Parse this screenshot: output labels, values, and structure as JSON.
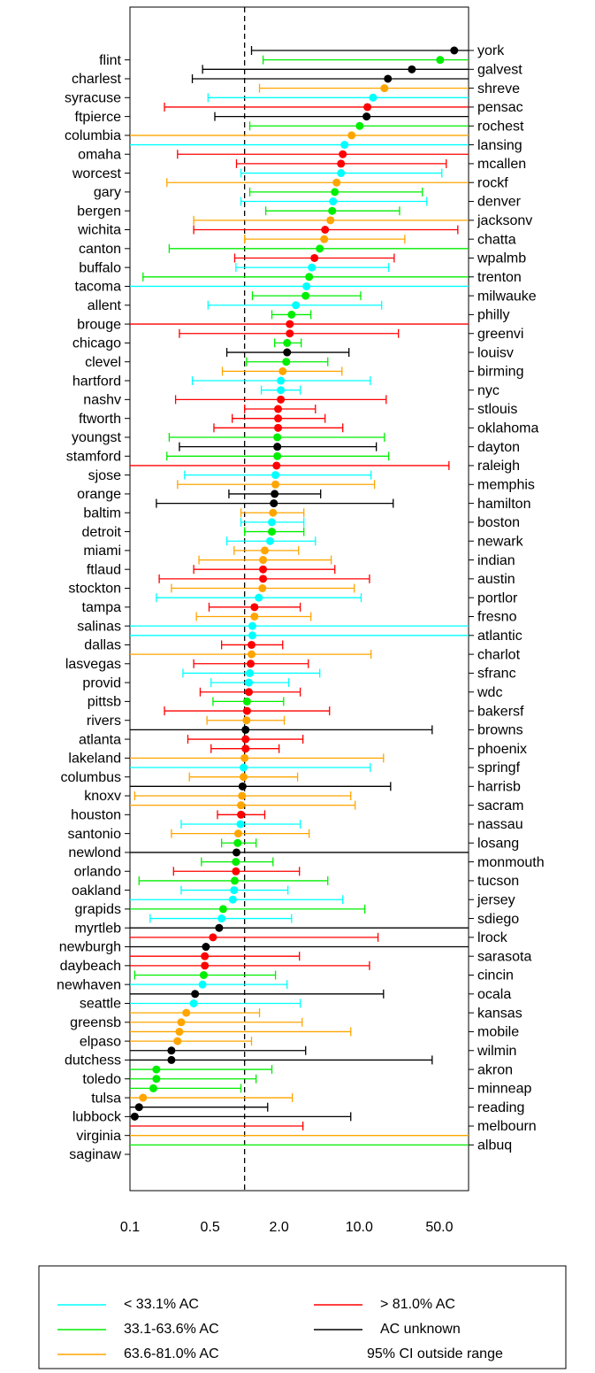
{
  "chart_data": {
    "type": "errorbar",
    "xscale": "log",
    "xlim": [
      0.1,
      90
    ],
    "xticks": [
      0.1,
      0.5,
      {
        "value": 2,
        "label": "2.0"
      },
      {
        "value": 10,
        "label": "10.0"
      },
      {
        "value": 50,
        "label": "50.0"
      }
    ],
    "grid": false,
    "refline": 1,
    "categories": [
      "york",
      "flint",
      "galvest",
      "charlest",
      "shreve",
      "syracuse",
      "pensac",
      "ftpierce",
      "rochest",
      "columbia",
      "lansing",
      "omaha",
      "mcallen",
      "worcest",
      "rockf",
      "gary",
      "denver",
      "bergen",
      "jacksonv",
      "wichita",
      "chatta",
      "canton",
      "wpalmb",
      "buffalo",
      "trenton",
      "tacoma",
      "milwauke",
      "allent",
      "philly",
      "brouge",
      "greenvi",
      "chicago",
      "louisv",
      "clevel",
      "birming",
      "hartford",
      "nyc",
      "nashv",
      "stlouis",
      "ftworth",
      "oklahoma",
      "youngst",
      "dayton",
      "stamford",
      "raleigh",
      "sjose",
      "memphis",
      "orange",
      "hamilton",
      "baltim",
      "boston",
      "detroit",
      "newark",
      "miami",
      "indian",
      "ftlaud",
      "austin",
      "stockton",
      "portlor",
      "tampa",
      "fresno",
      "salinas",
      "atlantic",
      "dallas",
      "charlot",
      "lasvegas",
      "sfranc",
      "provid",
      "wdc",
      "pittsb",
      "bakersf",
      "rivers",
      "browns",
      "atlanta",
      "phoenix",
      "lakeland",
      "springf",
      "columbus",
      "harrisb",
      "knoxv",
      "sacram",
      "houston",
      "nassau",
      "santonio",
      "losang",
      "newlond",
      "monmouth",
      "orlando",
      "tucson",
      "oakland",
      "jersey",
      "grapids",
      "sdiego",
      "myrtleb",
      "lrock",
      "newburgh",
      "sarasota",
      "daybeach",
      "cincin",
      "newhaven",
      "ocala",
      "seattle",
      "kansas",
      "greensb",
      "mobile",
      "elpaso",
      "wilmin",
      "dutchess",
      "akron",
      "toledo",
      "minneap",
      "tulsa",
      "reading",
      "lubbock",
      "melbourn",
      "virginia",
      "albuq",
      "saginaw"
    ],
    "values": [
      67.5,
      50.8,
      28.8,
      17.8,
      16.6,
      13.2,
      11.8,
      11.6,
      10.1,
      8.59,
      7.45,
      7.19,
      6.94,
      6.94,
      6.35,
      6.13,
      5.92,
      5.81,
      5.61,
      5.04,
      4.95,
      4.53,
      4.07,
      3.86,
      3.66,
      3.47,
      3.41,
      2.8,
      2.57,
      2.48,
      2.48,
      2.35,
      2.35,
      2.31,
      2.15,
      2.07,
      2.07,
      2.07,
      1.96,
      1.96,
      1.96,
      1.93,
      1.93,
      1.93,
      1.9,
      1.86,
      1.86,
      1.83,
      1.8,
      1.77,
      1.73,
      1.73,
      1.67,
      1.5,
      1.45,
      1.45,
      1.45,
      1.43,
      1.33,
      1.22,
      1.22,
      1.17,
      1.17,
      1.15,
      1.15,
      1.13,
      1.11,
      1.09,
      1.09,
      1.05,
      1.05,
      1.04,
      1.02,
      1.02,
      1.02,
      1,
      0.98,
      0.98,
      0.96,
      0.95,
      0.93,
      0.93,
      0.92,
      0.88,
      0.87,
      0.85,
      0.84,
      0.84,
      0.82,
      0.81,
      0.79,
      0.65,
      0.63,
      0.6,
      0.53,
      0.46,
      0.45,
      0.45,
      0.44,
      0.43,
      0.37,
      0.36,
      0.31,
      0.28,
      0.27,
      0.26,
      0.23,
      0.23,
      0.17,
      0.17,
      0.16,
      0.13,
      0.12,
      0.11,
      null,
      null,
      null,
      null
    ],
    "lower": [
      1.15,
      1.45,
      0.43,
      0.35,
      1.35,
      0.48,
      0.2,
      0.55,
      1.11,
      0.1,
      0.1,
      0.26,
      0.85,
      0.93,
      0.21,
      1.11,
      0.93,
      1.53,
      0.36,
      0.36,
      1,
      0.22,
      0.82,
      0.84,
      0.13,
      0.1,
      1.17,
      0.48,
      1.73,
      0.1,
      0.27,
      1.83,
      0.7,
      1.04,
      0.64,
      0.35,
      1.4,
      0.25,
      1,
      0.78,
      0.54,
      0.22,
      0.27,
      0.21,
      0.1,
      0.3,
      0.26,
      0.73,
      0.17,
      0.93,
      0.93,
      1,
      0.7,
      0.81,
      0.4,
      0.36,
      0.18,
      0.23,
      0.17,
      0.49,
      0.38,
      0.1,
      0.1,
      0.63,
      0.1,
      0.36,
      0.29,
      0.51,
      0.41,
      0.53,
      0.2,
      0.47,
      0.1,
      0.32,
      0.51,
      0.1,
      0.1,
      0.33,
      0.1,
      0.11,
      0.1,
      0.58,
      0.28,
      0.23,
      0.63,
      0.1,
      0.42,
      0.24,
      0.12,
      0.28,
      0.1,
      0.1,
      0.15,
      0.1,
      0.1,
      0.1,
      0.1,
      0.1,
      0.11,
      0.1,
      0.1,
      0.1,
      0.1,
      0.1,
      0.1,
      0.1,
      0.1,
      0.1,
      0.1,
      0.1,
      0.1,
      0.1,
      0.1,
      0.1,
      0.1,
      0.1,
      0.1,
      null
    ],
    "upper": [
      90,
      90,
      90,
      90,
      90,
      90,
      90,
      90,
      90,
      90,
      90,
      90,
      57.5,
      52.6,
      90,
      35.6,
      38.9,
      22.5,
      90,
      72.5,
      25,
      90,
      20.2,
      18.1,
      90,
      90,
      10.3,
      15.7,
      3.79,
      90,
      22,
      3.12,
      8.14,
      5.32,
      7.07,
      12.5,
      3.06,
      17.2,
      4.15,
      5.04,
      7.19,
      16.6,
      14.1,
      18.1,
      60.7,
      12.7,
      13.6,
      4.61,
      19.8,
      3.29,
      3.29,
      3.29,
      4.15,
      2.96,
      5.7,
      6.13,
      12.3,
      9.06,
      10.4,
      3.06,
      3.79,
      90,
      90,
      2.15,
      12.7,
      3.6,
      4.53,
      2.43,
      3.06,
      2.19,
      5.51,
      2.22,
      43.3,
      3.23,
      2,
      16.3,
      12.5,
      2.9,
      18.8,
      8.44,
      9.22,
      1.5,
      3.06,
      3.66,
      1.26,
      90,
      1.77,
      3.01,
      5.32,
      2.39,
      7.19,
      11.2,
      2.57,
      90,
      14.6,
      90,
      3.01,
      12.3,
      1.86,
      2.35,
      16.3,
      3.06,
      1.35,
      3.18,
      8.44,
      1.15,
      3.41,
      43.3,
      1.73,
      1.26,
      0.93,
      2.61,
      1.59,
      8.44,
      3.23,
      90,
      90,
      null
    ],
    "colors": [
      "#000000",
      "#00ee00",
      "#000000",
      "#000000",
      "#ffa500",
      "#00ffff",
      "#ff0000",
      "#000000",
      "#00ee00",
      "#ffa500",
      "#00ffff",
      "#ff0000",
      "#ff0000",
      "#00ffff",
      "#ffa500",
      "#00ee00",
      "#00ffff",
      "#00ee00",
      "#ffa500",
      "#ff0000",
      "#ffa500",
      "#00ee00",
      "#ff0000",
      "#00ffff",
      "#00ee00",
      "#00ffff",
      "#00ee00",
      "#00ffff",
      "#00ee00",
      "#ff0000",
      "#ff0000",
      "#00ee00",
      "#000000",
      "#00ee00",
      "#ffa500",
      "#00ffff",
      "#00ffff",
      "#ff0000",
      "#ff0000",
      "#ff0000",
      "#ff0000",
      "#00ee00",
      "#000000",
      "#00ee00",
      "#ff0000",
      "#00ffff",
      "#ffa500",
      "#000000",
      "#000000",
      "#ffa500",
      "#00ffff",
      "#00ee00",
      "#00ffff",
      "#ffa500",
      "#ffa500",
      "#ff0000",
      "#ff0000",
      "#ffa500",
      "#00ffff",
      "#ff0000",
      "#ffa500",
      "#00ffff",
      "#00ffff",
      "#ff0000",
      "#ffa500",
      "#ff0000",
      "#00ffff",
      "#00ffff",
      "#ff0000",
      "#00ee00",
      "#ff0000",
      "#ffa500",
      "#000000",
      "#ff0000",
      "#ff0000",
      "#ffa500",
      "#00ffff",
      "#ffa500",
      "#000000",
      "#ffa500",
      "#ffa500",
      "#ff0000",
      "#00ffff",
      "#ffa500",
      "#00ee00",
      "#000000",
      "#00ee00",
      "#ff0000",
      "#00ee00",
      "#00ffff",
      "#00ffff",
      "#00ee00",
      "#00ffff",
      "#000000",
      "#ff0000",
      "#000000",
      "#ff0000",
      "#ff0000",
      "#00ee00",
      "#00ffff",
      "#000000",
      "#00ffff",
      "#ffa500",
      "#ffa500",
      "#ffa500",
      "#ffa500",
      "#000000",
      "#000000",
      "#00ee00",
      "#00ee00",
      "#00ee00",
      "#ffa500",
      "#000000",
      "#000000",
      "#ff0000",
      "#ffa500",
      "#00ee00",
      null
    ],
    "legend": [
      {
        "label": "< 33.1% AC",
        "color": "#00ffff"
      },
      {
        "label": "33.1-63.6% AC",
        "color": "#00ee00"
      },
      {
        "label": "63.6-81.0% AC",
        "color": "#ffa500"
      },
      {
        "label": "> 81.0% AC",
        "color": "#ff0000"
      },
      {
        "label": "AC unknown",
        "color": "#000000"
      }
    ],
    "legend_note": "95% CI outside range"
  }
}
